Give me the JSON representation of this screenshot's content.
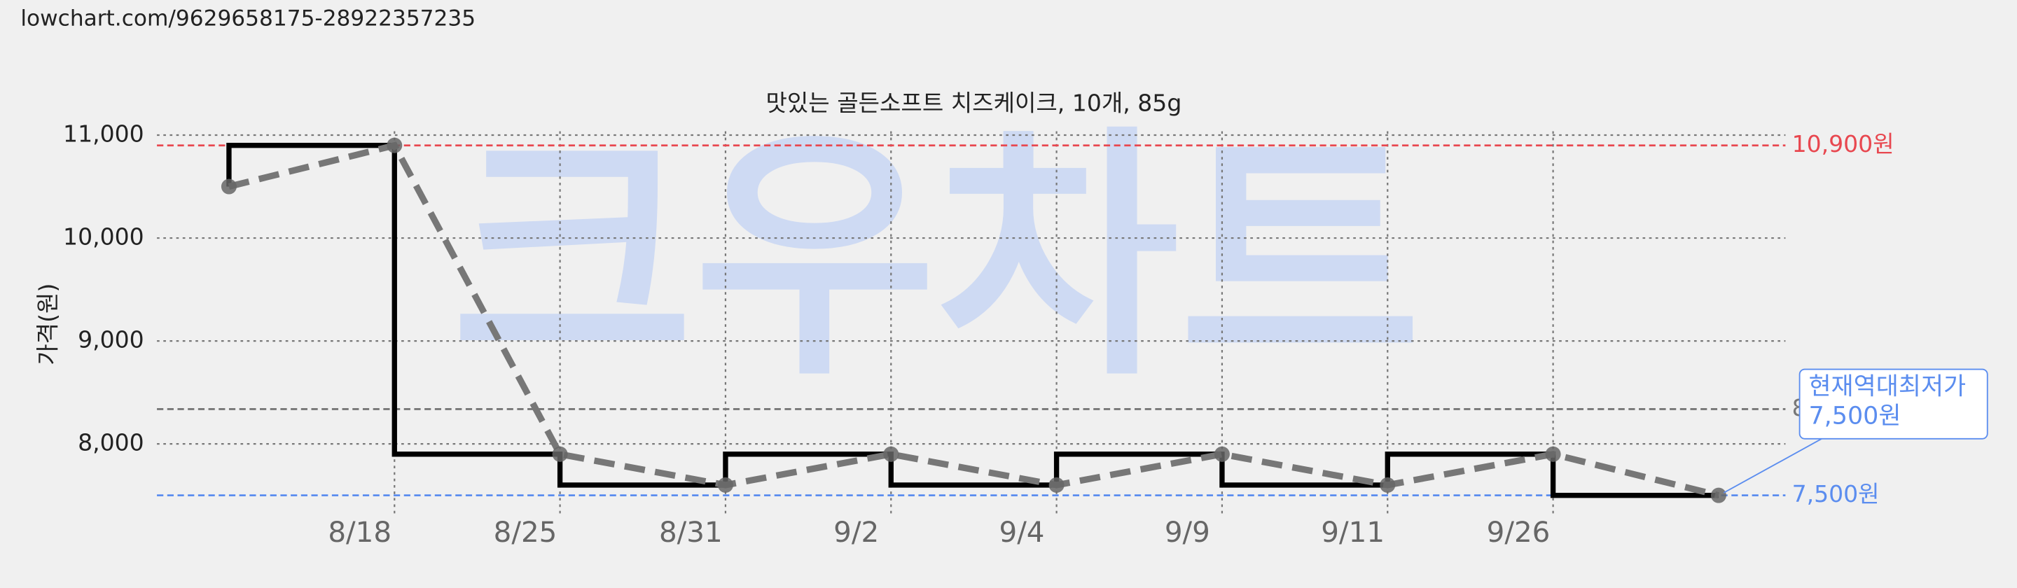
{
  "page_url": "lowchart.com/9629658175-28922357235",
  "watermark": "크우차트",
  "chart_data": {
    "type": "line",
    "title": "맛있는 골든소프트 치즈케이크, 10개, 85g",
    "y_label": "가격(원)",
    "categories": [
      null,
      "8/18",
      "8/25",
      "8/31",
      "9/2",
      "9/4",
      "9/9",
      "9/11",
      "9/26",
      null
    ],
    "series": [
      {
        "name": "가격",
        "color": "#000000",
        "style": "step",
        "values": [
          10500,
          10900,
          7900,
          7600,
          7900,
          7600,
          7900,
          7600,
          7900,
          7500
        ]
      }
    ],
    "ylim": [
      7300,
      11100
    ],
    "yticks": [
      {
        "value": 8000,
        "label": "8,000"
      },
      {
        "value": 9000,
        "label": "9,000"
      },
      {
        "value": 10000,
        "label": "10,000"
      },
      {
        "value": 11000,
        "label": "11,000"
      }
    ],
    "grid": true,
    "reference_lines": [
      {
        "value": 10900,
        "label": "10,900원",
        "color": "#e8474f"
      },
      {
        "value": 8338,
        "label": "8",
        "color": "#777777"
      },
      {
        "value": 7500,
        "label": "7,500원",
        "color": "#5b8def"
      }
    ],
    "annotation": {
      "lines": [
        "현재역대최저가",
        "7,500원"
      ],
      "color": "#5b8def"
    }
  }
}
